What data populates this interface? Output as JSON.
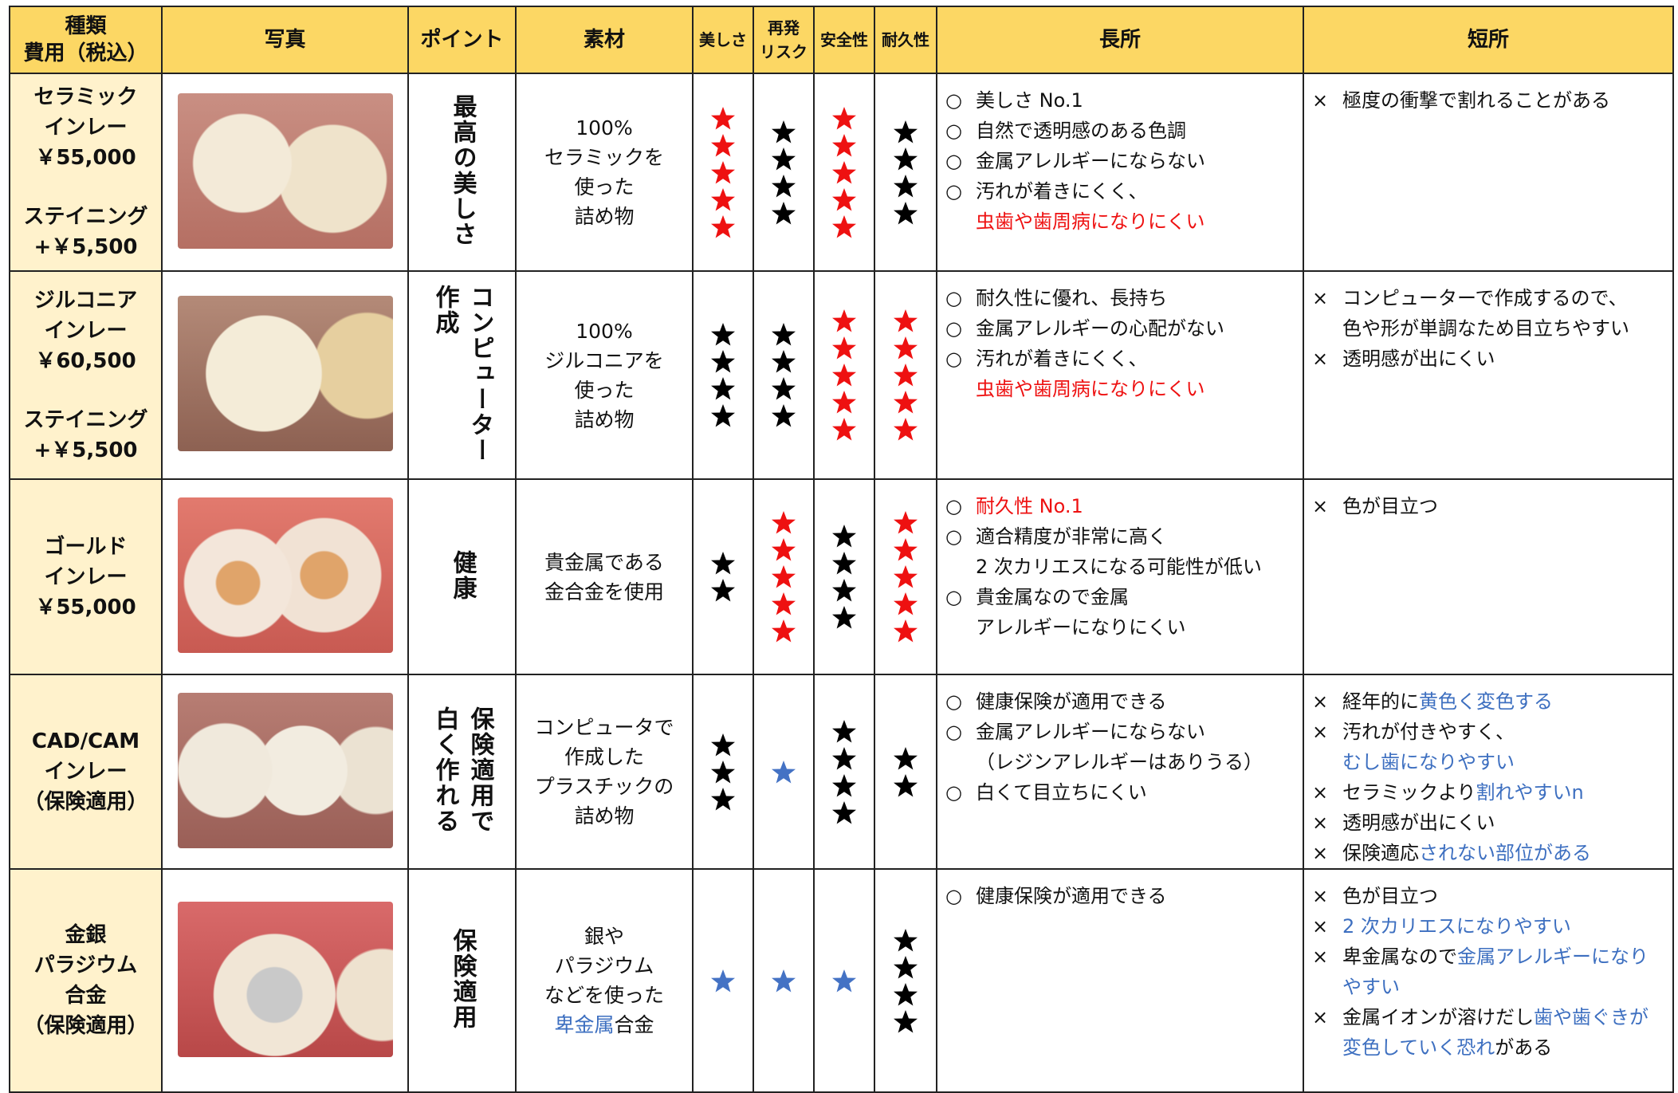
{
  "header": {
    "cells": [
      [
        "種類",
        "費用（税込）"
      ],
      [
        "写真"
      ],
      [
        "ポイント"
      ],
      [
        "素材"
      ],
      [
        "美しさ"
      ],
      [
        "再発",
        "リスク"
      ],
      [
        "安全性"
      ],
      [
        "耐久性"
      ],
      [
        "長所"
      ],
      [
        "短所"
      ]
    ]
  },
  "merit_marker": "○",
  "demerit_marker": "×",
  "rows": [
    {
      "type": [
        [
          "セラミック",
          "インレー",
          "￥55,000"
        ],
        [
          "ステイニング",
          "+￥5,500"
        ]
      ],
      "point": [
        "最高の美しさ"
      ],
      "material": [
        "100%",
        "セラミックを",
        "使った",
        "詰め物"
      ],
      "ratings": [
        {
          "count": 5,
          "color": "#ee1111"
        },
        {
          "count": 4,
          "color": "#000000"
        },
        {
          "count": 5,
          "color": "#ee1111"
        },
        {
          "count": 4,
          "color": "#000000"
        }
      ],
      "merits": [
        [
          [
            "美しさ No.1"
          ]
        ],
        [
          [
            "自然で透明感のある色調"
          ]
        ],
        [
          [
            "金属アレルギーにならない"
          ]
        ],
        [
          [
            "汚れが着きにくく、"
          ],
          [
            {
              "text": "虫歯や歯周病になりにくい",
              "color": "#ee1111"
            }
          ]
        ]
      ],
      "demerits": [
        [
          [
            "極度の衝撃で割れることがある"
          ]
        ]
      ]
    },
    {
      "type": [
        [
          "ジルコニア",
          "インレー",
          "￥60,500"
        ],
        [
          "ステイニング",
          "+￥5,500"
        ]
      ],
      "point": [
        "コンピューター",
        "作成"
      ],
      "material": [
        "100%",
        "ジルコニアを",
        "使った",
        "詰め物"
      ],
      "ratings": [
        {
          "count": 4,
          "color": "#000000"
        },
        {
          "count": 4,
          "color": "#000000"
        },
        {
          "count": 5,
          "color": "#ee1111"
        },
        {
          "count": 5,
          "color": "#ee1111"
        }
      ],
      "merits": [
        [
          [
            "耐久性に優れ、長持ち"
          ]
        ],
        [
          [
            "金属アレルギーの心配がない"
          ]
        ],
        [
          [
            "汚れが着きにくく、"
          ],
          [
            {
              "text": "虫歯や歯周病になりにくい",
              "color": "#ee1111"
            }
          ]
        ]
      ],
      "demerits": [
        [
          [
            "コンピューターで作成するので、"
          ],
          [
            "色や形が単調なため目立ちやすい"
          ]
        ],
        [
          [
            "透明感が出にくい"
          ]
        ]
      ]
    },
    {
      "type": [
        [
          "ゴールド",
          "インレー",
          "￥55,000"
        ]
      ],
      "point": [
        "健康"
      ],
      "material": [
        "貴金属である",
        "金合金を使用"
      ],
      "ratings": [
        {
          "count": 2,
          "color": "#000000"
        },
        {
          "count": 5,
          "color": "#ee1111"
        },
        {
          "count": 4,
          "color": "#000000"
        },
        {
          "count": 5,
          "color": "#ee1111"
        }
      ],
      "merits": [
        [
          [
            {
              "text": "耐久性 No.1",
              "color": "#ee1111"
            }
          ]
        ],
        [
          [
            "適合精度が非常に高く"
          ],
          [
            "2 次カリエスになる可能性が低い"
          ]
        ],
        [
          [
            "貴金属なので金属"
          ],
          [
            "アレルギーになりにくい"
          ]
        ]
      ],
      "demerits": [
        [
          [
            "色が目立つ"
          ]
        ]
      ]
    },
    {
      "type": [
        [
          "CAD/CAM",
          "インレー",
          "（保険適用）"
        ]
      ],
      "point": [
        "保険適用で",
        "白く作れる"
      ],
      "material": [
        "コンピュータで",
        "作成した",
        "プラスチックの",
        "詰め物"
      ],
      "ratings": [
        {
          "count": 3,
          "color": "#000000"
        },
        {
          "count": 1,
          "color": "#4472c4"
        },
        {
          "count": 4,
          "color": "#000000"
        },
        {
          "count": 2,
          "color": "#000000"
        }
      ],
      "merits": [
        [
          [
            "健康保険が適用できる"
          ]
        ],
        [
          [
            "金属アレルギーにならない"
          ],
          [
            "（レジンアレルギーはありうる）"
          ]
        ],
        [
          [
            "白くて目立ちにくい"
          ]
        ]
      ],
      "demerits": [
        [
          [
            "経年的に",
            {
              "text": "黄色く変色する",
              "color": "#3d6fc0"
            }
          ]
        ],
        [
          [
            "汚れが付きやすく、"
          ],
          [
            {
              "text": "むし歯になりやすい",
              "color": "#3d6fc0"
            }
          ]
        ],
        [
          [
            "セラミックより",
            {
              "text": "割れやすいn",
              "color": "#3d6fc0"
            }
          ]
        ],
        [
          [
            "透明感が出にくい"
          ]
        ],
        [
          [
            "保険適応",
            {
              "text": "されない部位がある",
              "color": "#3d6fc0"
            }
          ]
        ]
      ]
    },
    {
      "type": [
        [
          "金銀",
          "パラジウム",
          "合金",
          "（保険適用）"
        ]
      ],
      "point": [
        "保険適用"
      ],
      "material": [
        "銀や",
        "パラジウム",
        "などを使った",
        [
          {
            "text": "卑金属",
            "color": "#3d6fc0"
          },
          "合金"
        ]
      ],
      "ratings": [
        {
          "count": 1,
          "color": "#4472c4"
        },
        {
          "count": 1,
          "color": "#4472c4"
        },
        {
          "count": 1,
          "color": "#4472c4"
        },
        {
          "count": 4,
          "color": "#000000"
        }
      ],
      "merits": [
        [
          [
            "健康保険が適用できる"
          ]
        ]
      ],
      "demerits": [
        [
          [
            "色が目立つ"
          ]
        ],
        [
          [
            {
              "text": "2 次カリエスになりやすい",
              "color": "#3d6fc0"
            }
          ]
        ],
        [
          [
            "卑金属なので",
            {
              "text": "金属アレルギーになり",
              "color": "#3d6fc0"
            }
          ],
          [
            {
              "text": "やすい",
              "color": "#3d6fc0"
            }
          ]
        ],
        [
          [
            "金属イオンが溶けだし",
            {
              "text": "歯や歯ぐきが",
              "color": "#3d6fc0"
            }
          ],
          [
            {
              "text": "変色していく恐れ",
              "color": "#3d6fc0"
            },
            "がある"
          ]
        ]
      ]
    }
  ]
}
